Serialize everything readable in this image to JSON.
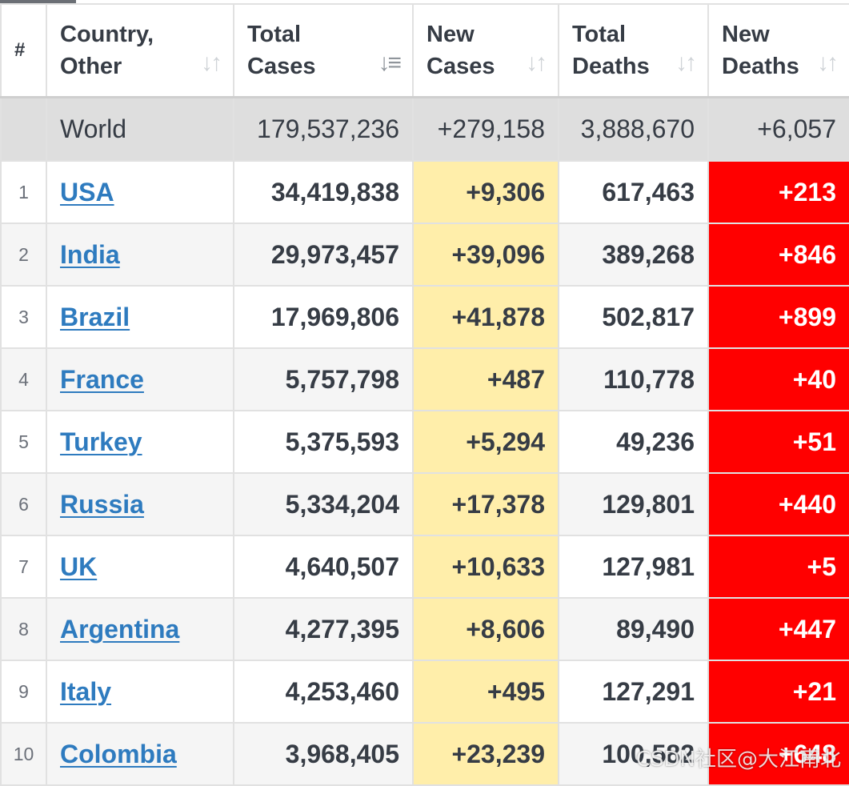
{
  "table": {
    "headers": {
      "rank": "#",
      "country": [
        "Country,",
        "Other"
      ],
      "total_cases": [
        "Total",
        "Cases"
      ],
      "new_cases": [
        "New",
        "Cases"
      ],
      "total_deaths": [
        "Total",
        "Deaths"
      ],
      "new_deaths": [
        "New",
        "Deaths"
      ]
    },
    "sort_icons": {
      "country": "sort-icon",
      "total_cases": "sort-descending-icon",
      "new_cases": "sort-icon",
      "total_deaths": "sort-icon",
      "new_deaths": "sort-icon"
    },
    "world": {
      "country": "World",
      "total_cases": "179,537,236",
      "new_cases": "+279,158",
      "total_deaths": "3,888,670",
      "new_deaths": "+6,057"
    },
    "rows": [
      {
        "rank": "1",
        "country": "USA",
        "total_cases": "34,419,838",
        "new_cases": "+9,306",
        "total_deaths": "617,463",
        "new_deaths": "+213"
      },
      {
        "rank": "2",
        "country": "India",
        "total_cases": "29,973,457",
        "new_cases": "+39,096",
        "total_deaths": "389,268",
        "new_deaths": "+846"
      },
      {
        "rank": "3",
        "country": "Brazil",
        "total_cases": "17,969,806",
        "new_cases": "+41,878",
        "total_deaths": "502,817",
        "new_deaths": "+899"
      },
      {
        "rank": "4",
        "country": "France",
        "total_cases": "5,757,798",
        "new_cases": "+487",
        "total_deaths": "110,778",
        "new_deaths": "+40"
      },
      {
        "rank": "5",
        "country": "Turkey",
        "total_cases": "5,375,593",
        "new_cases": "+5,294",
        "total_deaths": "49,236",
        "new_deaths": "+51"
      },
      {
        "rank": "6",
        "country": "Russia",
        "total_cases": "5,334,204",
        "new_cases": "+17,378",
        "total_deaths": "129,801",
        "new_deaths": "+440"
      },
      {
        "rank": "7",
        "country": "UK",
        "total_cases": "4,640,507",
        "new_cases": "+10,633",
        "total_deaths": "127,981",
        "new_deaths": "+5"
      },
      {
        "rank": "8",
        "country": "Argentina",
        "total_cases": "4,277,395",
        "new_cases": "+8,606",
        "total_deaths": "89,490",
        "new_deaths": "+447"
      },
      {
        "rank": "9",
        "country": "Italy",
        "total_cases": "4,253,460",
        "new_cases": "+495",
        "total_deaths": "127,291",
        "new_deaths": "+21"
      },
      {
        "rank": "10",
        "country": "Colombia",
        "total_cases": "3,968,405",
        "new_cases": "+23,239",
        "total_deaths": "100,582",
        "new_deaths": "+648"
      }
    ]
  },
  "watermark": "CSDN社区@大江南北",
  "colors": {
    "new_cases_bg": "#ffeeaa",
    "new_deaths_bg": "#ff0000",
    "link": "#2e7bbf",
    "world_row_bg": "#dedede"
  }
}
